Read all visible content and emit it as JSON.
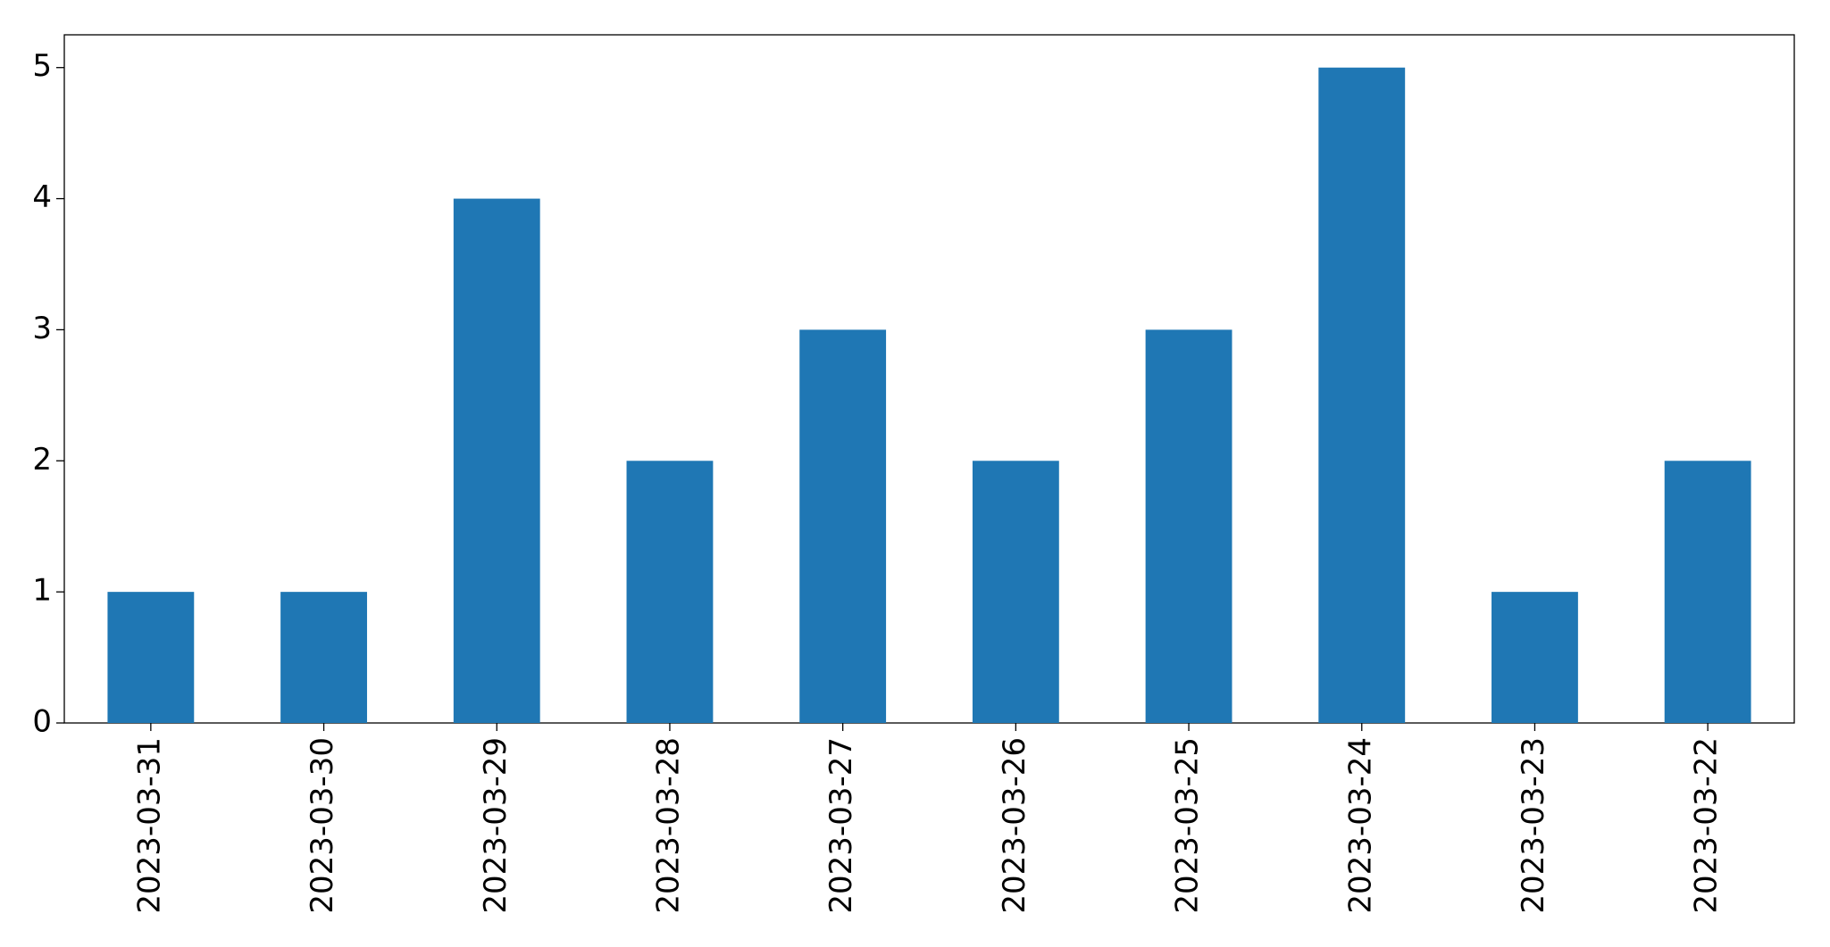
{
  "chart_data": {
    "type": "bar",
    "categories": [
      "2023-03-31",
      "2023-03-30",
      "2023-03-29",
      "2023-03-28",
      "2023-03-27",
      "2023-03-26",
      "2023-03-25",
      "2023-03-24",
      "2023-03-23",
      "2023-03-22"
    ],
    "values": [
      1,
      1,
      4,
      2,
      3,
      2,
      3,
      5,
      1,
      2
    ],
    "color": "#1f77b4",
    "ylim": [
      0,
      5.25
    ],
    "yticks": [
      0,
      1,
      2,
      3,
      4,
      5
    ],
    "grid": false
  }
}
